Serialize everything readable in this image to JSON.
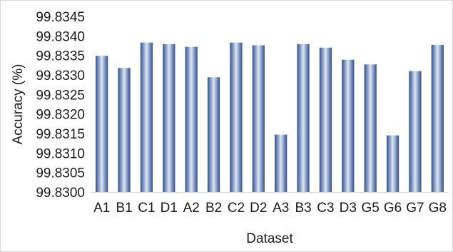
{
  "chart_data": {
    "type": "bar",
    "title": "",
    "xlabel": "Dataset",
    "ylabel": "Accuracy (%)",
    "ylim": [
      99.83,
      99.8345
    ],
    "yticks": [
      "99.8300",
      "99.8305",
      "99.8310",
      "99.8315",
      "99.8320",
      "99.8325",
      "99.8330",
      "99.8335",
      "99.8340",
      "99.8345"
    ],
    "grid": false,
    "legend": "none",
    "categories": [
      "A1",
      "B1",
      "C1",
      "D1",
      "A2",
      "B2",
      "C2",
      "D2",
      "A3",
      "B3",
      "C3",
      "D3",
      "G5",
      "G6",
      "G7",
      "G8"
    ],
    "values": [
      99.83349,
      99.83318,
      99.83383,
      99.83379,
      99.83372,
      99.83294,
      99.83383,
      99.83376,
      99.83147,
      99.83379,
      99.8337,
      99.83339,
      99.83327,
      99.83145,
      99.8331,
      99.83377
    ],
    "bar_color_edge": "#2e4f8f",
    "bar_color_center": "#dce6f5",
    "axis_color": "#d9d9d9",
    "text_color": "#1a1a1a"
  }
}
